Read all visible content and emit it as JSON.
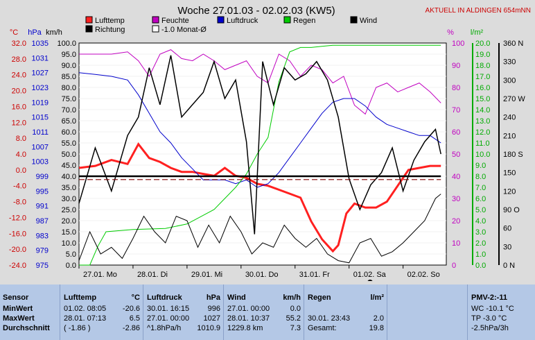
{
  "title": "Woche 27.01.03 - 02.02.03 (KW5)",
  "aktuell": "AKTUELL IN ALDINGEN 654mNN",
  "legend": [
    {
      "label": "Lufttemp",
      "color": "#ff2020"
    },
    {
      "label": "Feuchte",
      "color": "#c000c0"
    },
    {
      "label": "Luftdruck",
      "color": "#0000cc"
    },
    {
      "label": "Regen",
      "color": "#00cc00"
    },
    {
      "label": "Wind",
      "color": "#000000"
    },
    {
      "label": "Richtung",
      "color": "#000000"
    },
    {
      "label": "-1.0 Monat-Ø",
      "color": "#ffffff"
    }
  ],
  "axis_headers": {
    "temp": "°C",
    "hpa": "hPa",
    "kmh": "km/h",
    "pct": "%",
    "rain": "l/m²"
  },
  "chart_data": {
    "type": "line",
    "x_ticks": [
      "27.01. Mo",
      "28.01. Di",
      "29.01. Mi",
      "30.01. Do",
      "31.01. Fr",
      "01.02. Sa",
      "02.02. So"
    ],
    "axes": {
      "temp": {
        "min": -24,
        "max": 32,
        "ticks": [
          "32.0",
          "28.0",
          "24.0",
          "20.0",
          "16.0",
          "12.0",
          "8.0",
          "4.0",
          "0.0",
          "-4.0",
          "-8.0",
          "-12.0",
          "-16.0",
          "-20.0",
          "-24.0"
        ]
      },
      "hpa": {
        "min": 975,
        "max": 1035,
        "ticks": [
          "1035",
          "1031",
          "1027",
          "1023",
          "1019",
          "1015",
          "1011",
          "1007",
          "1003",
          "999",
          "995",
          "991",
          "987",
          "983",
          "979",
          "975"
        ]
      },
      "kmh": {
        "min": 0,
        "max": 100,
        "ticks": [
          "100.0",
          "95.0",
          "90.0",
          "85.0",
          "80.0",
          "75.0",
          "70.0",
          "65.0",
          "60.0",
          "55.0",
          "50.0",
          "45.0",
          "40.0",
          "35.0",
          "30.0",
          "25.0",
          "20.0",
          "15.0",
          "10.0",
          "5.0",
          "0.0"
        ]
      },
      "pct": {
        "min": 0,
        "max": 100,
        "ticks": [
          "100",
          "90",
          "80",
          "70",
          "60",
          "50",
          "40",
          "30",
          "20",
          "10",
          "0"
        ]
      },
      "rain": {
        "min": 0,
        "max": 20,
        "ticks": [
          "20.0",
          "19.0",
          "18.0",
          "17.0",
          "16.0",
          "15.0",
          "14.0",
          "13.0",
          "12.0",
          "11.0",
          "10.0",
          "9.0",
          "8.0",
          "7.0",
          "6.0",
          "5.0",
          "4.0",
          "3.0",
          "2.0",
          "1.0",
          "0.0"
        ]
      },
      "dir": {
        "min": 0,
        "max": 360,
        "ticks": [
          "360 N",
          "330",
          "300",
          "270 W",
          "240",
          "210",
          "180 S",
          "150",
          "120",
          "90 O",
          "60",
          "30",
          "0 N"
        ]
      }
    },
    "series": [
      {
        "name": "Lufttemp",
        "color": "#ff2020",
        "axis": "temp",
        "x": [
          0,
          0.3,
          0.6,
          0.9,
          1.1,
          1.3,
          1.5,
          1.7,
          1.9,
          2.1,
          2.3,
          2.5,
          2.7,
          2.9,
          3.1,
          3.3,
          3.5,
          3.7,
          3.9,
          4.1,
          4.3,
          4.5,
          4.7,
          4.8,
          4.95,
          5.1,
          5.3,
          5.5,
          5.7,
          5.9,
          6.1,
          6.3,
          6.5,
          6.7
        ],
        "y": [
          0.5,
          1.0,
          2.5,
          1.5,
          6.5,
          3.0,
          2.0,
          0.5,
          -0.5,
          -0.5,
          -1.0,
          -1.5,
          0.5,
          -1.5,
          -2.0,
          -3.5,
          -4.0,
          -5.0,
          -6.0,
          -7.0,
          -13.0,
          -17.5,
          -20.5,
          -19.0,
          -11.0,
          -8.5,
          -9.5,
          -9.5,
          -8.0,
          -4.0,
          0.0,
          0.5,
          1.0,
          1.0
        ]
      },
      {
        "name": "Feuchte",
        "color": "#c000c0",
        "axis": "pct",
        "x": [
          0,
          0.3,
          0.6,
          0.9,
          1.1,
          1.3,
          1.5,
          1.7,
          1.9,
          2.1,
          2.3,
          2.5,
          2.7,
          2.9,
          3.1,
          3.3,
          3.5,
          3.7,
          3.9,
          4.1,
          4.3,
          4.5,
          4.7,
          4.9,
          5.1,
          5.3,
          5.5,
          5.7,
          5.9,
          6.1,
          6.3,
          6.5,
          6.7
        ],
        "y": [
          95,
          95,
          95,
          96,
          92,
          85,
          95,
          97,
          93,
          92,
          95,
          92,
          88,
          90,
          92,
          85,
          82,
          95,
          92,
          85,
          90,
          88,
          82,
          85,
          72,
          68,
          80,
          82,
          78,
          80,
          82,
          78,
          73
        ]
      },
      {
        "name": "Luftdruck",
        "color": "#0000cc",
        "axis": "hpa",
        "x": [
          0,
          0.3,
          0.6,
          0.9,
          1.1,
          1.3,
          1.5,
          1.7,
          1.9,
          2.1,
          2.3,
          2.5,
          2.7,
          2.9,
          3.1,
          3.3,
          3.5,
          3.7,
          3.9,
          4.1,
          4.3,
          4.5,
          4.7,
          4.9,
          5.1,
          5.3,
          5.5,
          5.7,
          5.9,
          6.1,
          6.3,
          6.5,
          6.7
        ],
        "y": [
          1027,
          1026.5,
          1026,
          1025,
          1021,
          1016,
          1011,
          1008,
          1004,
          1001,
          998,
          998,
          998,
          997,
          998,
          996,
          997,
          1000,
          1004,
          1008,
          1012,
          1016,
          1019,
          1020,
          1020,
          1018,
          1015,
          1013,
          1012,
          1011,
          1010,
          1010,
          1008
        ]
      },
      {
        "name": "Regen",
        "color": "#00cc00",
        "axis": "rain",
        "x": [
          0,
          0.2,
          0.35,
          0.5,
          1.0,
          1.6,
          2.0,
          2.5,
          2.9,
          3.1,
          3.3,
          3.5,
          3.7,
          3.9,
          4.1,
          4.3,
          4.5,
          4.7,
          5.0,
          5.5,
          6.0,
          6.5,
          6.7
        ],
        "y": [
          0,
          0,
          1.7,
          3.0,
          3.2,
          3.3,
          3.7,
          5.0,
          7.0,
          8.2,
          10.0,
          11.5,
          16.5,
          19.2,
          19.6,
          19.6,
          19.7,
          19.8,
          19.8,
          19.8,
          19.8,
          19.8,
          19.8
        ]
      },
      {
        "name": "Wind",
        "color": "#000000",
        "axis": "kmh",
        "x": [
          0,
          0.2,
          0.4,
          0.6,
          0.8,
          1.0,
          1.2,
          1.4,
          1.6,
          1.8,
          2.0,
          2.2,
          2.4,
          2.6,
          2.8,
          3.0,
          3.2,
          3.4,
          3.6,
          3.8,
          4.0,
          4.2,
          4.4,
          4.6,
          4.8,
          5.0,
          5.2,
          5.4,
          5.6,
          5.8,
          6.0,
          6.2,
          6.4,
          6.6,
          6.7
        ],
        "y": [
          2,
          15,
          5,
          8,
          3,
          12,
          22,
          15,
          10,
          22,
          20,
          8,
          18,
          10,
          22,
          15,
          5,
          10,
          8,
          18,
          12,
          8,
          12,
          5,
          2,
          1,
          10,
          12,
          4,
          6,
          10,
          15,
          20,
          30,
          32
        ]
      },
      {
        "name": "Richtung",
        "color": "#000000",
        "axis": "dir",
        "x": [
          0,
          0.3,
          0.6,
          0.9,
          1.1,
          1.3,
          1.5,
          1.7,
          1.9,
          2.1,
          2.3,
          2.5,
          2.7,
          2.9,
          3.1,
          3.25,
          3.4,
          3.6,
          3.8,
          4.0,
          4.2,
          4.4,
          4.6,
          4.8,
          5.0,
          5.2,
          5.4,
          5.6,
          5.8,
          6.0,
          6.2,
          6.4,
          6.6,
          6.7
        ],
        "y": [
          100,
          190,
          120,
          210,
          240,
          320,
          260,
          340,
          240,
          260,
          280,
          330,
          270,
          300,
          200,
          50,
          330,
          260,
          320,
          300,
          310,
          330,
          300,
          240,
          140,
          90,
          130,
          150,
          190,
          120,
          170,
          200,
          220,
          180
        ]
      },
      {
        "name": "Richtung",
        "color": "#000000",
        "axis": "kmh",
        "x": [
          0,
          6.7
        ],
        "y": [
          40,
          40
        ]
      },
      {
        "name": "-1.0 Monat-Ø",
        "color": "#800000",
        "axis": "kmh",
        "dashed": true,
        "x": [
          0,
          6.7
        ],
        "y": [
          38.5,
          38.5
        ]
      }
    ]
  },
  "stats": {
    "sensor": {
      "header": "Sensor",
      "rows": [
        "MinWert",
        "MaxWert",
        "Durchschnitt"
      ]
    },
    "lufttemp": {
      "header": "Lufttemp",
      "unit": "°C",
      "rows": [
        [
          "01.02.  08:05",
          "-20.6"
        ],
        [
          "28.01.  07:13",
          "6.5"
        ],
        [
          "( -1.86 )",
          "-2.86"
        ]
      ]
    },
    "luftdruck": {
      "header": "Luftdruck",
      "unit": "hPa",
      "rows": [
        [
          "30.01.  16:15",
          "996"
        ],
        [
          "27.01.  00:00",
          "1027"
        ],
        [
          "^1.8hPa/h",
          "1010.9"
        ]
      ]
    },
    "wind": {
      "header": "Wind",
      "unit": "km/h",
      "rows": [
        [
          "27.01.  00:00",
          "0.0"
        ],
        [
          "28.01.  10:37",
          "55.2"
        ],
        [
          "1229.8 km",
          "7.3"
        ]
      ]
    },
    "regen": {
      "header": "Regen",
      "unit": "l/m²",
      "rows": [
        [
          "",
          ""
        ],
        [
          "30.01.  23:43",
          "2.0"
        ],
        [
          "Gesamt:",
          "19.8"
        ]
      ]
    },
    "pmv": {
      "header": "PMV-2:-11",
      "rows": [
        "WC -10.1 °C",
        "TP -3.0 °C",
        "-2.5hPa/3h"
      ]
    }
  }
}
